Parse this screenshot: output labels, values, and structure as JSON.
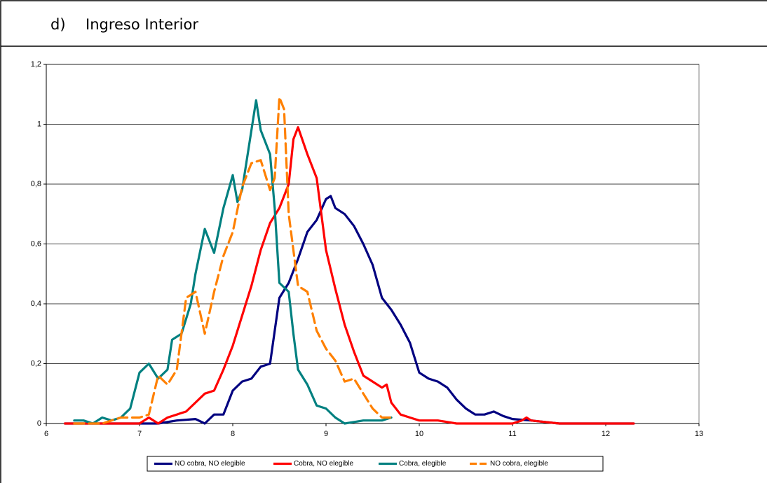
{
  "heading": {
    "marker": "d)",
    "text": "Ingreso Interior"
  },
  "chart_data": {
    "type": "line",
    "xlim": [
      6,
      13
    ],
    "xticks": [
      6,
      7,
      8,
      9,
      10,
      11,
      12,
      13
    ],
    "ylim": [
      0,
      1.2
    ],
    "yticks": [
      0,
      {
        "value": 0.2,
        "label": "0,2"
      },
      {
        "value": 0.4,
        "label": "0,4"
      },
      {
        "value": 0.6,
        "label": "0,6"
      },
      {
        "value": 0.8,
        "label": "0,8"
      },
      1,
      {
        "value": 1.2,
        "label": "1,2"
      }
    ],
    "grid": true,
    "legend": "bottom",
    "series": [
      {
        "name": "NO cobra, NO elegible",
        "color": "#000080",
        "dashed": false,
        "x": [
          6.2,
          7.0,
          7.2,
          7.4,
          7.6,
          7.7,
          7.8,
          7.9,
          8.0,
          8.1,
          8.2,
          8.3,
          8.4,
          8.5,
          8.6,
          8.7,
          8.8,
          8.9,
          9.0,
          9.05,
          9.1,
          9.2,
          9.3,
          9.4,
          9.5,
          9.6,
          9.7,
          9.8,
          9.9,
          10.0,
          10.1,
          10.2,
          10.3,
          10.4,
          10.5,
          10.6,
          10.7,
          10.8,
          10.9,
          11.0,
          11.2,
          11.5,
          12.3
        ],
        "values": [
          0,
          0,
          0,
          0.01,
          0.015,
          0,
          0.03,
          0.03,
          0.11,
          0.14,
          0.15,
          0.19,
          0.2,
          0.42,
          0.47,
          0.55,
          0.64,
          0.68,
          0.75,
          0.76,
          0.72,
          0.7,
          0.66,
          0.6,
          0.53,
          0.42,
          0.38,
          0.33,
          0.27,
          0.17,
          0.15,
          0.14,
          0.12,
          0.08,
          0.05,
          0.03,
          0.03,
          0.04,
          0.025,
          0.015,
          0.01,
          0,
          0
        ]
      },
      {
        "name": "Cobra, NO elegible",
        "color": "#ff0000",
        "dashed": false,
        "x": [
          6.2,
          7.0,
          7.1,
          7.2,
          7.3,
          7.5,
          7.6,
          7.7,
          7.8,
          7.9,
          8.0,
          8.1,
          8.2,
          8.3,
          8.4,
          8.5,
          8.6,
          8.65,
          8.7,
          8.8,
          8.9,
          9.0,
          9.1,
          9.2,
          9.3,
          9.4,
          9.5,
          9.6,
          9.65,
          9.7,
          9.8,
          9.9,
          10.0,
          10.2,
          10.4,
          11.0,
          11.1,
          11.15,
          11.2,
          11.5,
          12.3
        ],
        "values": [
          0,
          0,
          0.02,
          0,
          0.02,
          0.04,
          0.07,
          0.1,
          0.11,
          0.18,
          0.26,
          0.36,
          0.46,
          0.58,
          0.67,
          0.72,
          0.8,
          0.95,
          0.99,
          0.9,
          0.82,
          0.58,
          0.45,
          0.33,
          0.24,
          0.16,
          0.14,
          0.12,
          0.13,
          0.07,
          0.03,
          0.02,
          0.01,
          0.01,
          0,
          0,
          0.01,
          0.02,
          0.01,
          0,
          0
        ]
      },
      {
        "name": "Cobra, elegible",
        "color": "#008080",
        "dashed": false,
        "x": [
          6.3,
          6.4,
          6.5,
          6.6,
          6.7,
          6.8,
          6.9,
          7.0,
          7.1,
          7.2,
          7.3,
          7.35,
          7.45,
          7.55,
          7.6,
          7.7,
          7.8,
          7.9,
          8.0,
          8.05,
          8.1,
          8.2,
          8.25,
          8.3,
          8.4,
          8.45,
          8.5,
          8.6,
          8.65,
          8.7,
          8.8,
          8.9,
          9.0,
          9.1,
          9.2,
          9.4,
          9.5,
          9.6,
          9.7
        ],
        "values": [
          0.01,
          0.01,
          0,
          0.02,
          0.01,
          0.02,
          0.05,
          0.17,
          0.2,
          0.15,
          0.18,
          0.28,
          0.3,
          0.4,
          0.5,
          0.65,
          0.57,
          0.72,
          0.83,
          0.74,
          0.78,
          0.98,
          1.08,
          0.98,
          0.9,
          0.72,
          0.47,
          0.44,
          0.3,
          0.18,
          0.13,
          0.06,
          0.05,
          0.02,
          0,
          0.01,
          0.01,
          0.01,
          0.02
        ]
      },
      {
        "name": "NO cobra, elegible",
        "color": "#ff8000",
        "dashed": true,
        "x": [
          6.3,
          6.6,
          6.8,
          7.0,
          7.1,
          7.2,
          7.3,
          7.4,
          7.5,
          7.6,
          7.7,
          7.8,
          7.9,
          8.0,
          8.1,
          8.2,
          8.3,
          8.4,
          8.45,
          8.5,
          8.55,
          8.6,
          8.7,
          8.8,
          8.9,
          9.0,
          9.1,
          9.2,
          9.3,
          9.4,
          9.5,
          9.6,
          9.7
        ],
        "values": [
          0,
          0,
          0.02,
          0.02,
          0.03,
          0.16,
          0.13,
          0.18,
          0.42,
          0.44,
          0.3,
          0.44,
          0.56,
          0.64,
          0.79,
          0.87,
          0.88,
          0.78,
          0.82,
          1.09,
          1.05,
          0.7,
          0.46,
          0.44,
          0.31,
          0.25,
          0.21,
          0.14,
          0.15,
          0.1,
          0.05,
          0.02,
          0.02
        ]
      }
    ]
  }
}
